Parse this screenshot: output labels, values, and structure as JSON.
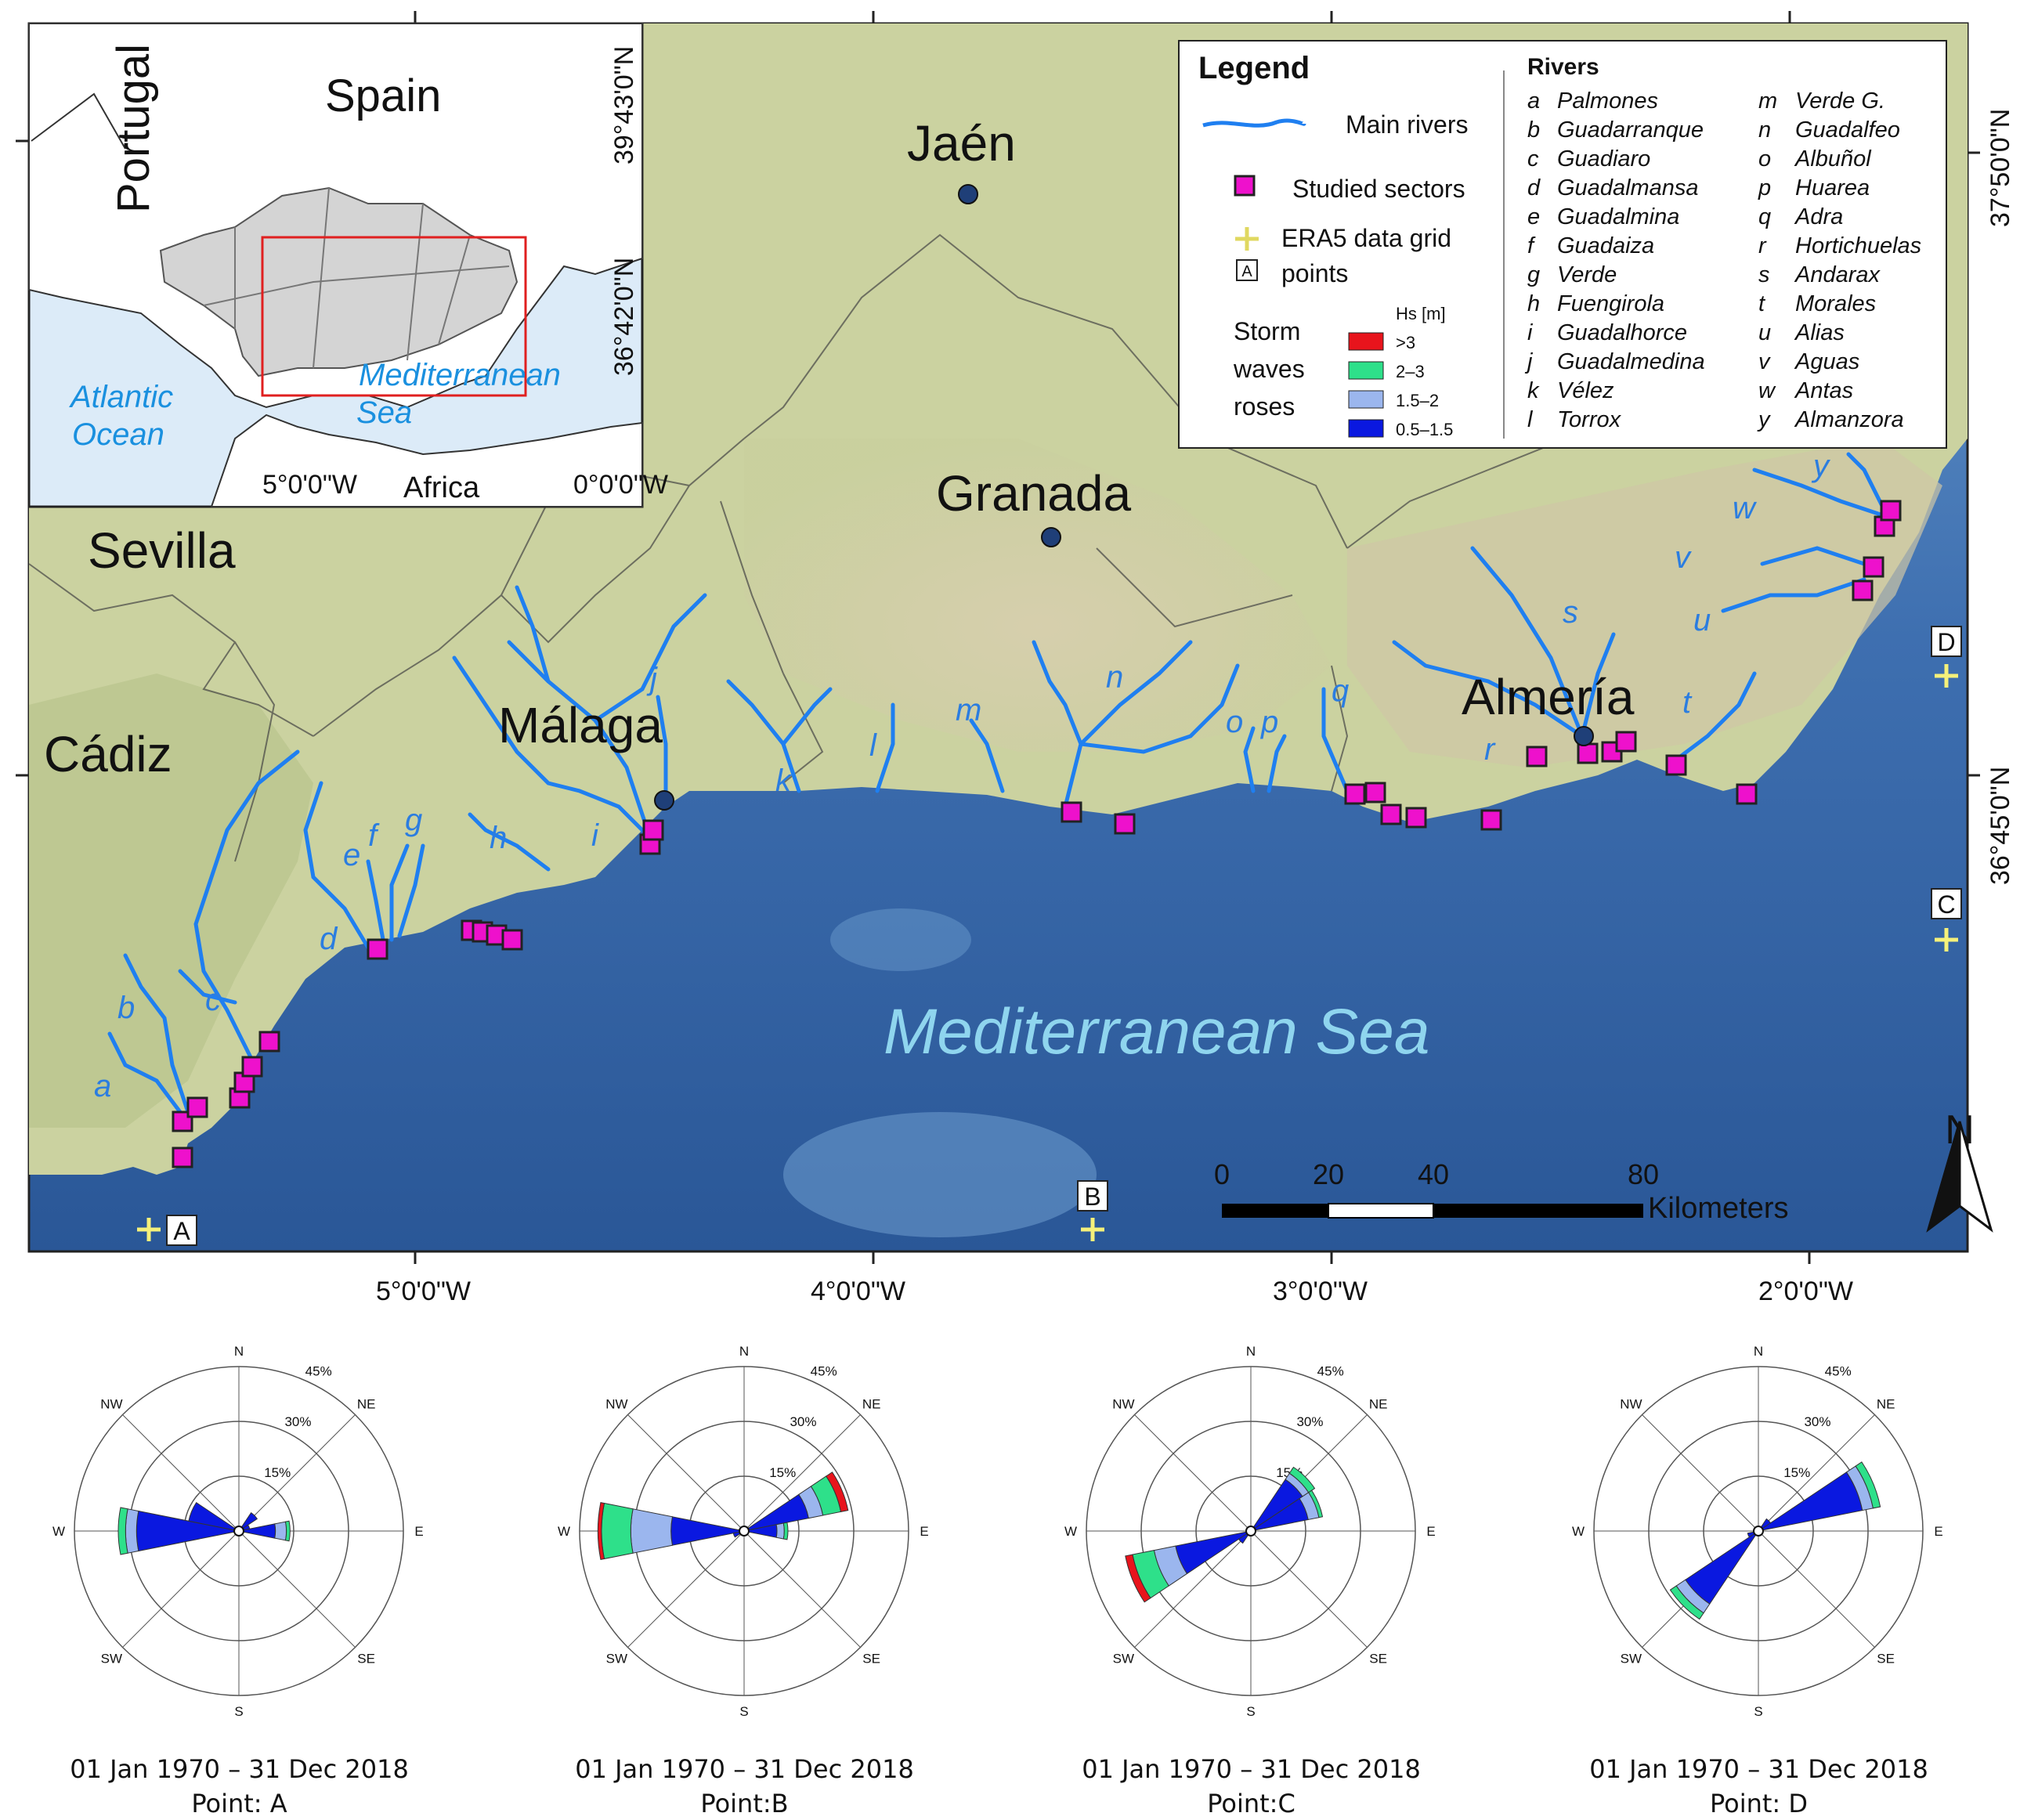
{
  "inset": {
    "countries": [
      "Spain",
      "Portugal",
      "Africa"
    ],
    "seas": [
      "Atlantic Ocean",
      "Mediterranean Sea"
    ],
    "lat_labels": [
      "39°43'0\"N",
      "36°42'0\"N"
    ],
    "lon_labels": [
      "5°0'0\"W",
      "0°0'0\"W"
    ]
  },
  "map": {
    "cities": [
      {
        "name": "Jaén"
      },
      {
        "name": "Granada"
      },
      {
        "name": "Málaga"
      },
      {
        "name": "Almería"
      }
    ],
    "provinces": [
      "Sevilla",
      "Cádiz"
    ],
    "sea_label": "Mediterranean Sea",
    "lon_labels": [
      "5°0'0\"W",
      "4°0'0\"W",
      "3°0'0\"W",
      "2°0'0\"W"
    ],
    "lat_labels": [
      "37°50'0\"N",
      "36°45'0\"N"
    ],
    "grid_points": [
      "A",
      "B",
      "C",
      "D"
    ],
    "river_letters": [
      "a",
      "b",
      "c",
      "d",
      "e",
      "f",
      "g",
      "h",
      "i",
      "j",
      "k",
      "l",
      "m",
      "n",
      "o",
      "p",
      "q",
      "r",
      "s",
      "t",
      "u",
      "v",
      "w",
      "y"
    ],
    "scale": {
      "ticks": [
        "0",
        "20",
        "40",
        "80"
      ],
      "unit": "Kilometers"
    },
    "north": "N"
  },
  "legend": {
    "title": "Legend",
    "main_rivers": "Main rivers",
    "studied_sectors": "Studied sectors",
    "era5_line1": "ERA5 data grid",
    "era5_line2": "points",
    "era5_box": "A",
    "storm_line1": "Storm",
    "storm_line2": "waves",
    "storm_line3": "roses",
    "hs_title": "Hs [m]",
    "hs_classes": [
      {
        "label": ">3",
        "color": "#e8141c"
      },
      {
        "label": "2–3",
        "color": "#2ee08a"
      },
      {
        "label": "1.5–2",
        "color": "#9bb6ee"
      },
      {
        "label": "0.5–1.5",
        "color": "#0a18e0"
      }
    ],
    "rivers_title": "Rivers",
    "rivers_col1": [
      {
        "k": "a",
        "v": "Palmones"
      },
      {
        "k": "b",
        "v": "Guadarranque"
      },
      {
        "k": "c",
        "v": "Guadiaro"
      },
      {
        "k": "d",
        "v": "Guadalmansa"
      },
      {
        "k": "e",
        "v": "Guadalmina"
      },
      {
        "k": "f",
        "v": "Guadaiza"
      },
      {
        "k": "g",
        "v": "Verde"
      },
      {
        "k": "h",
        "v": "Fuengirola"
      },
      {
        "k": "i",
        "v": "Guadalhorce"
      },
      {
        "k": "j",
        "v": "Guadalmedina"
      },
      {
        "k": "k",
        "v": "Vélez"
      },
      {
        "k": "l",
        "v": "Torrox"
      }
    ],
    "rivers_col2": [
      {
        "k": "m",
        "v": "Verde G."
      },
      {
        "k": "n",
        "v": "Guadalfeo"
      },
      {
        "k": "o",
        "v": "Albuñol"
      },
      {
        "k": "p",
        "v": "Huarea"
      },
      {
        "k": "q",
        "v": "Adra"
      },
      {
        "k": "r",
        "v": "Hortichuelas"
      },
      {
        "k": "s",
        "v": "Andarax"
      },
      {
        "k": "t",
        "v": "Morales"
      },
      {
        "k": "u",
        "v": "Alias"
      },
      {
        "k": "v",
        "v": "Aguas"
      },
      {
        "k": "w",
        "v": "Antas"
      },
      {
        "k": "y",
        "v": "Almanzora"
      }
    ]
  },
  "roses": {
    "directions": [
      "N",
      "NE",
      "E",
      "SE",
      "S",
      "SW",
      "W",
      "NW"
    ],
    "ring_labels": [
      "15%",
      "30%",
      "45%"
    ],
    "colors": {
      "c1": "#0a18e0",
      "c2": "#9bb6ee",
      "c3": "#2ee08a",
      "c4": "#e8141c"
    },
    "items": [
      {
        "date": "01 Jan 1970 – 31 Dec 2018",
        "point": "Point: A",
        "petals": [
          {
            "dir": 90,
            "c1": 10,
            "c2": 3,
            "c3": 1,
            "c4": 0
          },
          {
            "dir": 270,
            "c1": 28,
            "c2": 3,
            "c3": 2,
            "c4": 0
          },
          {
            "dir": 292.5,
            "c1": 14,
            "c2": 0,
            "c3": 0,
            "c4": 0
          },
          {
            "dir": 45,
            "c1": 6,
            "c2": 0,
            "c3": 0,
            "c4": 0
          },
          {
            "dir": 67.5,
            "c1": 3,
            "c2": 0,
            "c3": 0,
            "c4": 0
          }
        ]
      },
      {
        "date": "01 Jan 1970 – 31 Dec 2018",
        "point": "Point:B",
        "petals": [
          {
            "dir": 270,
            "c1": 20,
            "c2": 11,
            "c3": 8,
            "c4": 1
          },
          {
            "dir": 67.5,
            "c1": 18,
            "c2": 4,
            "c3": 5,
            "c4": 2
          },
          {
            "dir": 90,
            "c1": 9,
            "c2": 2,
            "c3": 1,
            "c4": 0
          },
          {
            "dir": 247.5,
            "c1": 3,
            "c2": 0,
            "c3": 0,
            "c4": 0
          }
        ]
      },
      {
        "date": "01 Jan 1970 – 31 Dec 2018",
        "point": "Point:C",
        "petals": [
          {
            "dir": 247.5,
            "c1": 21,
            "c2": 6,
            "c3": 6,
            "c4": 2
          },
          {
            "dir": 45,
            "c1": 17,
            "c2": 2,
            "c3": 2,
            "c4": 0
          },
          {
            "dir": 67.5,
            "c1": 16,
            "c2": 3,
            "c3": 1,
            "c4": 0
          },
          {
            "dir": 225,
            "c1": 4,
            "c2": 0,
            "c3": 0,
            "c4": 0
          }
        ]
      },
      {
        "date": "01 Jan 1970 – 31 Dec 2018",
        "point": "Point: D",
        "petals": [
          {
            "dir": 67.5,
            "c1": 29,
            "c2": 3,
            "c3": 2,
            "c4": 0
          },
          {
            "dir": 225,
            "c1": 24,
            "c2": 3,
            "c3": 2,
            "c4": 0
          },
          {
            "dir": 45,
            "c1": 4,
            "c2": 0,
            "c3": 0,
            "c4": 0
          },
          {
            "dir": 247.5,
            "c1": 3,
            "c2": 0,
            "c3": 0,
            "c4": 0
          }
        ]
      }
    ]
  }
}
